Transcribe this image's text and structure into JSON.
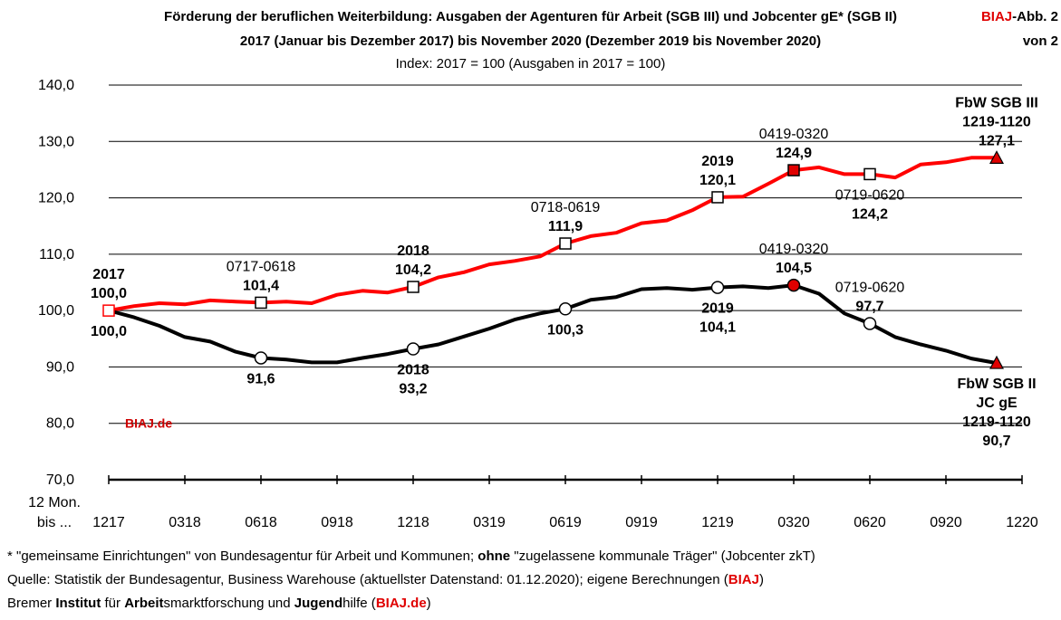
{
  "header": {
    "title_line1": "Förderung der beruflichen Weiterbildung: Ausgaben der Agenturen für Arbeit (SGB III) und Jobcenter gE* (SGB II)",
    "title_line2": "2017 (Januar bis Dezember 2017) bis November 2020 (Dezember 2019 bis November 2020)",
    "subtitle": "Index: 2017 = 100  (Ausgaben in 2017 = 100)",
    "badge_line1_red": "BIAJ",
    "badge_line1_rest": "-Abb. 2",
    "badge_line2": "von 2"
  },
  "chart_data": {
    "type": "line",
    "ylim": [
      70,
      140
    ],
    "y_ticks": [
      "140,0",
      "130,0",
      "120,0",
      "110,0",
      "100,0",
      "90,0",
      "80,0",
      "70,0"
    ],
    "y_tick_values": [
      140,
      130,
      120,
      110,
      100,
      90,
      80,
      70
    ],
    "x_axis_label_line1": "12 Mon.",
    "x_axis_label_line2": "bis ...",
    "x_tick_labels": [
      "1217",
      "0318",
      "0618",
      "0918",
      "1218",
      "0319",
      "0619",
      "0919",
      "1219",
      "0320",
      "0620",
      "0920",
      "1220"
    ],
    "watermark": "BIAJ.de",
    "series": [
      {
        "name": "FbW SGB III",
        "color": "#ff0000",
        "values": [
          100.0,
          100.8,
          101.3,
          101.1,
          101.8,
          101.6,
          101.4,
          101.6,
          101.3,
          102.8,
          103.5,
          103.2,
          104.2,
          105.9,
          106.8,
          108.2,
          108.8,
          109.6,
          111.9,
          113.2,
          113.8,
          115.5,
          116.0,
          117.8,
          120.1,
          120.2,
          122.5,
          124.9,
          125.4,
          124.2,
          124.2,
          123.6,
          125.9,
          126.3,
          127.1,
          127.1
        ]
      },
      {
        "name": "FbW SGB II JC gE",
        "color": "#000000",
        "values": [
          100.0,
          98.8,
          97.3,
          95.3,
          94.5,
          92.7,
          91.6,
          91.3,
          90.8,
          90.8,
          91.6,
          92.3,
          93.2,
          94.0,
          95.4,
          96.8,
          98.4,
          99.5,
          100.3,
          101.9,
          102.4,
          103.8,
          104.0,
          103.7,
          104.1,
          104.3,
          104.0,
          104.5,
          103.0,
          99.5,
          97.7,
          95.3,
          94.0,
          92.9,
          91.5,
          90.7
        ]
      }
    ],
    "markers": [
      {
        "series": 0,
        "index": 0,
        "shape": "square",
        "style": "hollow-red"
      },
      {
        "series": 0,
        "index": 6,
        "shape": "square",
        "style": "hollow"
      },
      {
        "series": 0,
        "index": 12,
        "shape": "square",
        "style": "hollow"
      },
      {
        "series": 0,
        "index": 18,
        "shape": "square",
        "style": "hollow"
      },
      {
        "series": 0,
        "index": 24,
        "shape": "square",
        "style": "hollow"
      },
      {
        "series": 0,
        "index": 27,
        "shape": "square",
        "style": "filled"
      },
      {
        "series": 0,
        "index": 30,
        "shape": "square",
        "style": "hollow"
      },
      {
        "series": 0,
        "index": 35,
        "shape": "triangle",
        "style": "filled"
      },
      {
        "series": 1,
        "index": 6,
        "shape": "circle",
        "style": "hollow"
      },
      {
        "series": 1,
        "index": 12,
        "shape": "circle",
        "style": "hollow"
      },
      {
        "series": 1,
        "index": 18,
        "shape": "circle",
        "style": "hollow"
      },
      {
        "series": 1,
        "index": 24,
        "shape": "circle",
        "style": "hollow"
      },
      {
        "series": 1,
        "index": 27,
        "shape": "circle",
        "style": "filled"
      },
      {
        "series": 1,
        "index": 30,
        "shape": "circle",
        "style": "hollow"
      },
      {
        "series": 1,
        "index": 35,
        "shape": "triangle",
        "style": "filled"
      }
    ],
    "annotations": [
      {
        "index": 0,
        "value": 100.0,
        "position": "above",
        "lines": [
          {
            "text": "2017",
            "bold": true
          },
          {
            "text": "100,0",
            "bold": true
          }
        ]
      },
      {
        "index": 0,
        "value": 100.0,
        "position": "below",
        "lines": [
          {
            "text": "100,0",
            "bold": true
          }
        ]
      },
      {
        "index": 6,
        "value": 101.4,
        "position": "above",
        "lines": [
          {
            "text": "0717-0618",
            "bold": false
          },
          {
            "text": "101,4",
            "bold": true
          }
        ]
      },
      {
        "index": 12,
        "value": 104.2,
        "position": "above",
        "lines": [
          {
            "text": "2018",
            "bold": true
          },
          {
            "text": "104,2",
            "bold": true
          }
        ]
      },
      {
        "index": 18,
        "value": 111.9,
        "position": "above",
        "lines": [
          {
            "text": "0718-0619",
            "bold": false
          },
          {
            "text": "111,9",
            "bold": true
          }
        ]
      },
      {
        "index": 24,
        "value": 120.1,
        "position": "above",
        "lines": [
          {
            "text": "2019",
            "bold": true
          },
          {
            "text": "120,1",
            "bold": true
          }
        ]
      },
      {
        "index": 27,
        "value": 124.9,
        "position": "above",
        "lines": [
          {
            "text": "0419-0320",
            "bold": false
          },
          {
            "text": "124,9",
            "bold": true
          }
        ]
      },
      {
        "index": 30,
        "value": 124.2,
        "position": "below",
        "lines": [
          {
            "text": "0719-0620",
            "bold": false
          },
          {
            "text": "124,2",
            "bold": true
          }
        ]
      },
      {
        "index": 35,
        "value": 127.1,
        "position": "above",
        "lines": [
          {
            "text": "FbW SGB III",
            "bold": true
          },
          {
            "text": "1219-1120",
            "bold": true
          },
          {
            "text": "127,1",
            "bold": true
          }
        ]
      },
      {
        "index": 6,
        "value": 91.6,
        "position": "below",
        "lines": [
          {
            "text": "91,6",
            "bold": true
          }
        ]
      },
      {
        "index": 12,
        "value": 93.2,
        "position": "below",
        "lines": [
          {
            "text": "2018",
            "bold": true
          },
          {
            "text": "93,2",
            "bold": true
          }
        ]
      },
      {
        "index": 18,
        "value": 100.3,
        "position": "below",
        "lines": [
          {
            "text": "100,3",
            "bold": true
          }
        ]
      },
      {
        "index": 24,
        "value": 104.1,
        "position": "below",
        "lines": [
          {
            "text": "2019",
            "bold": true
          },
          {
            "text": "104,1",
            "bold": true
          }
        ]
      },
      {
        "index": 27,
        "value": 104.5,
        "position": "above",
        "lines": [
          {
            "text": "0419-0320",
            "bold": false
          },
          {
            "text": "104,5",
            "bold": true
          }
        ]
      },
      {
        "index": 30,
        "value": 97.7,
        "position": "above",
        "lines": [
          {
            "text": "0719-0620",
            "bold": false
          },
          {
            "text": "97,7",
            "bold": true
          }
        ]
      },
      {
        "index": 35,
        "value": 90.7,
        "position": "below",
        "lines": [
          {
            "text": "FbW SGB II",
            "bold": true
          },
          {
            "text": "JC gE",
            "bold": true
          },
          {
            "text": "1219-1120",
            "bold": true
          },
          {
            "text": "90,7",
            "bold": true
          }
        ]
      }
    ]
  },
  "footer": {
    "line1_a": "* \"gemeinsame Einrichtungen\" von Bundesagentur für Arbeit und Kommunen; ",
    "line1_b": "ohne",
    "line1_c": " \"zugelassene kommunale Träger\" (Jobcenter zkT)",
    "line2_a": "Quelle: Statistik der Bundesagentur, Business Warehouse (aktuellster Datenstand: 01.12.2020); eigene Berechnungen (",
    "line2_b": "BIAJ",
    "line2_c": ")",
    "line3_a": "Bremer ",
    "line3_b": "Institut",
    "line3_c": " für ",
    "line3_d": "Arbeit",
    "line3_e": "smarktforschung und ",
    "line3_f": "Jugend",
    "line3_g": "hilfe (",
    "line3_h": "BIAJ.de",
    "line3_i": ")"
  }
}
